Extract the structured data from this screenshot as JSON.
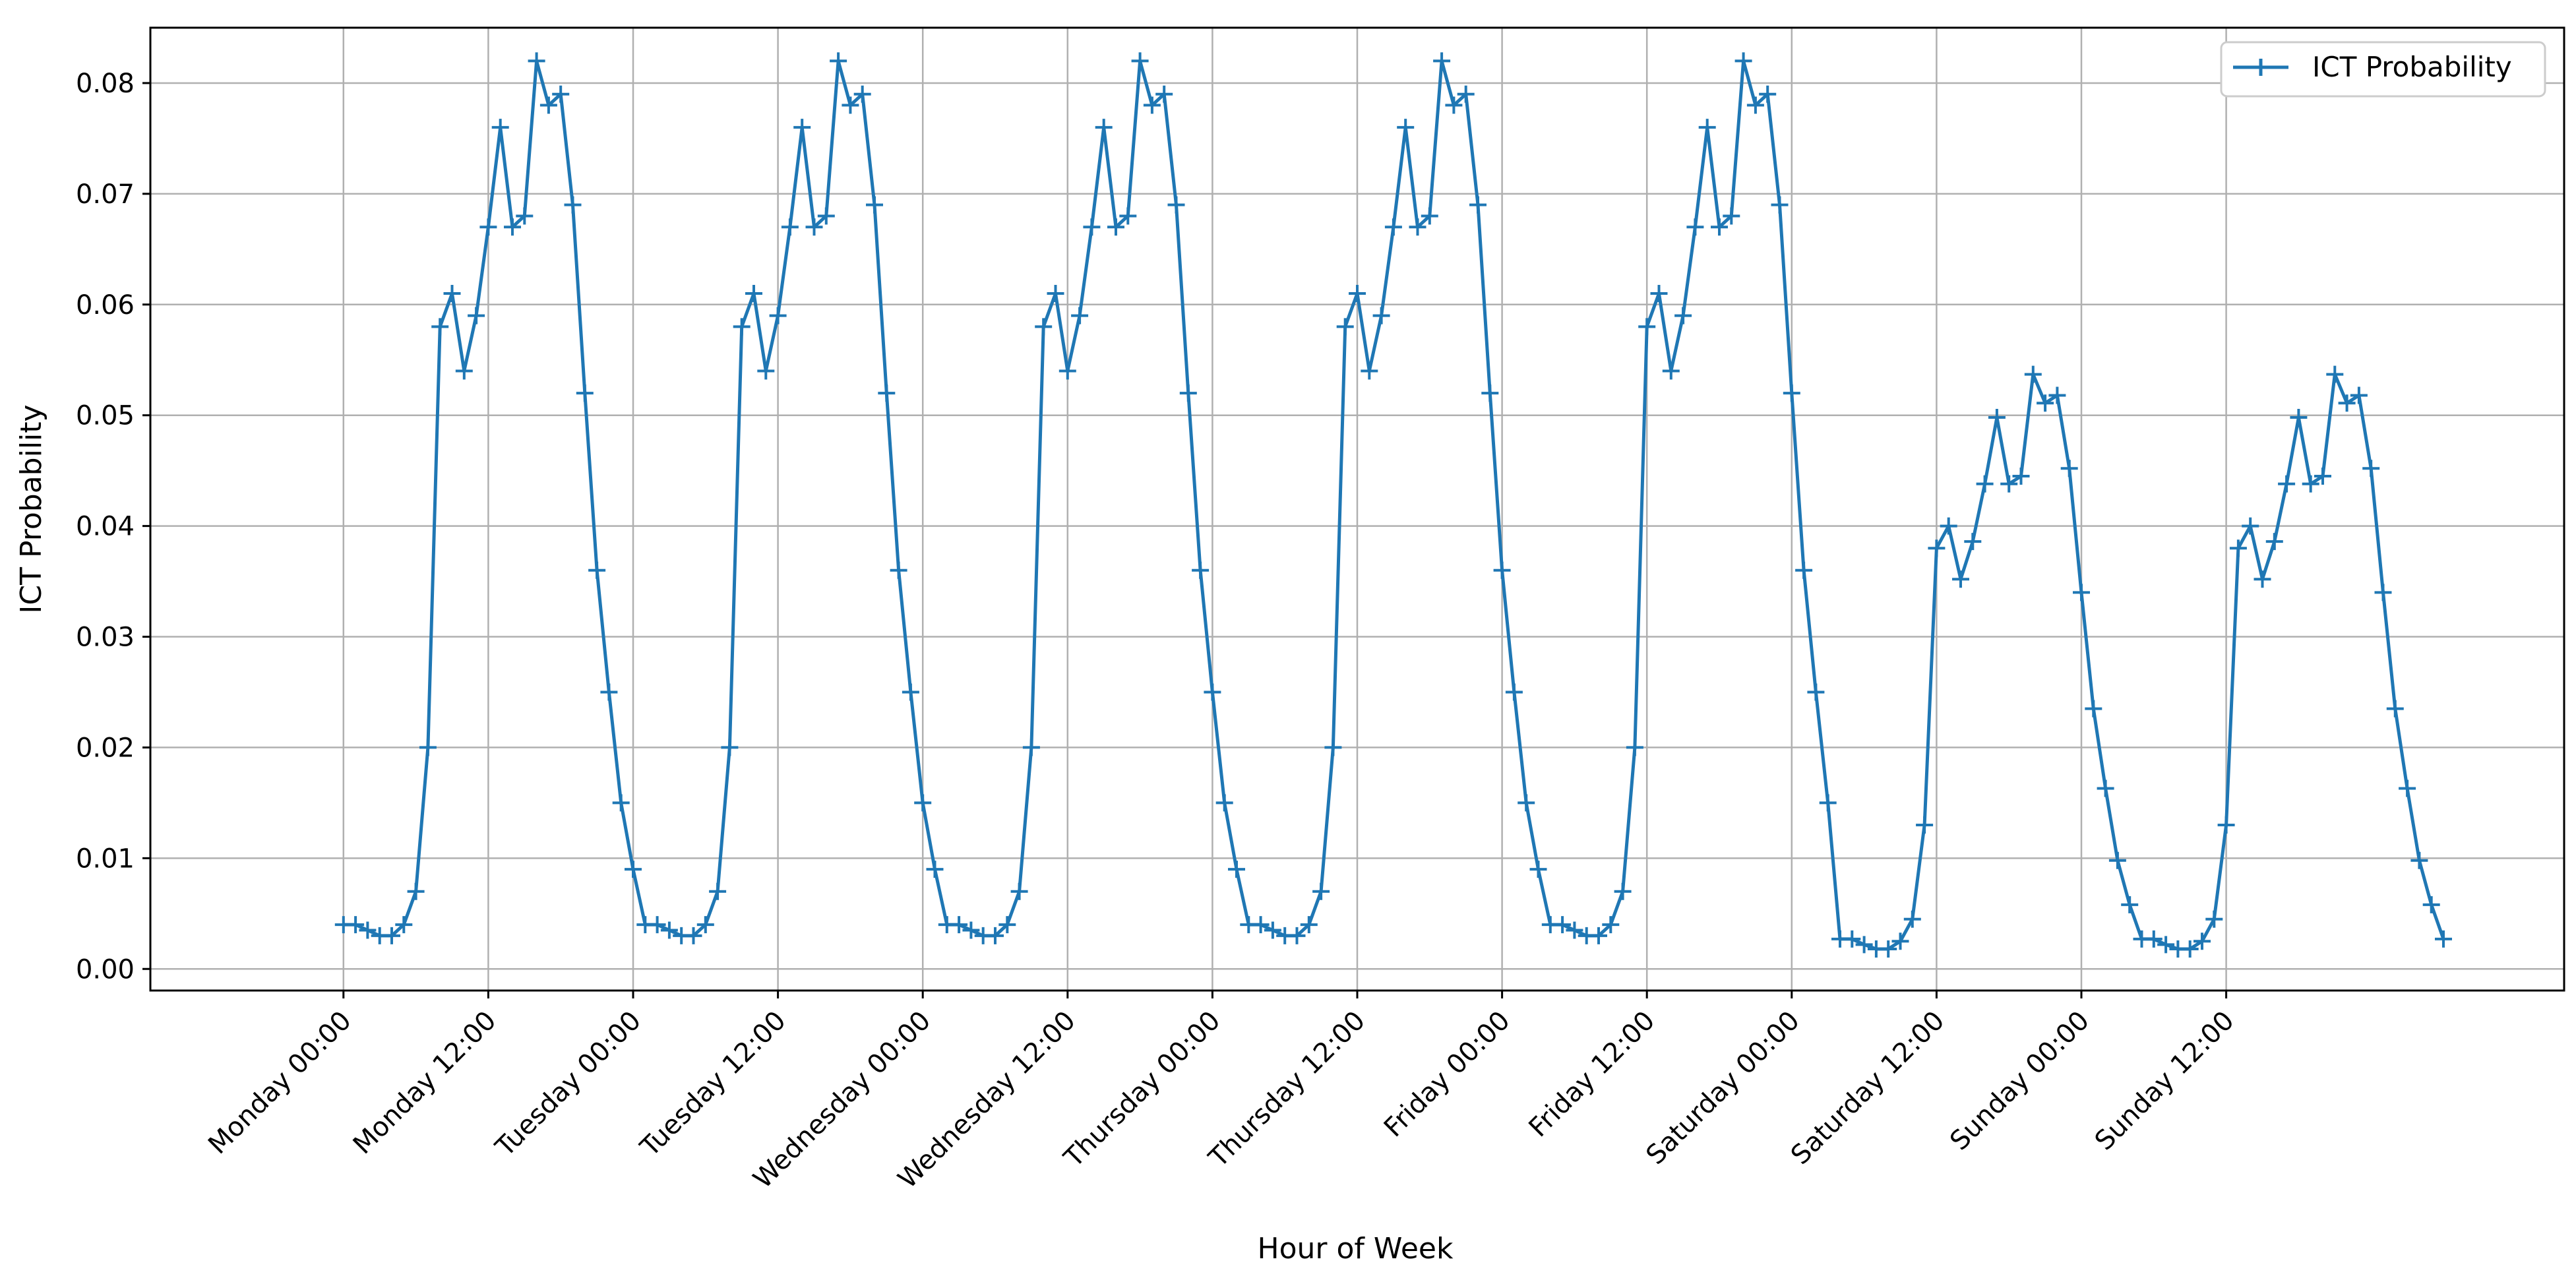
{
  "chart_data": {
    "type": "line",
    "xlabel": "Hour of Week",
    "ylabel": "ICT Probability",
    "xlim": [
      -16,
      184
    ],
    "ylim": [
      -0.00195,
      0.085
    ],
    "grid": true,
    "legend_placement": "top-right",
    "x_ticks": [
      {
        "value": 0,
        "label": "Monday 00:00"
      },
      {
        "value": 12,
        "label": "Monday 12:00"
      },
      {
        "value": 24,
        "label": "Tuesday 00:00"
      },
      {
        "value": 36,
        "label": "Tuesday 12:00"
      },
      {
        "value": 48,
        "label": "Wednesday 00:00"
      },
      {
        "value": 60,
        "label": "Wednesday 12:00"
      },
      {
        "value": 72,
        "label": "Thursday 00:00"
      },
      {
        "value": 84,
        "label": "Thursday 12:00"
      },
      {
        "value": 96,
        "label": "Friday 00:00"
      },
      {
        "value": 108,
        "label": "Friday 12:00"
      },
      {
        "value": 120,
        "label": "Saturday 00:00"
      },
      {
        "value": 132,
        "label": "Saturday 12:00"
      },
      {
        "value": 144,
        "label": "Sunday 00:00"
      },
      {
        "value": 156,
        "label": "Sunday 12:00"
      }
    ],
    "y_ticks": [
      {
        "value": 0.0,
        "label": "0.00"
      },
      {
        "value": 0.01,
        "label": "0.01"
      },
      {
        "value": 0.02,
        "label": "0.02"
      },
      {
        "value": 0.03,
        "label": "0.03"
      },
      {
        "value": 0.04,
        "label": "0.04"
      },
      {
        "value": 0.05,
        "label": "0.05"
      },
      {
        "value": 0.06,
        "label": "0.06"
      },
      {
        "value": 0.07,
        "label": "0.07"
      },
      {
        "value": 0.08,
        "label": "0.08"
      }
    ],
    "series": [
      {
        "name": "ICT Probability",
        "color": "#1f77b4",
        "marker": "plus",
        "y": [
          0.004,
          0.004,
          0.0035,
          0.003,
          0.003,
          0.004,
          0.007,
          0.02,
          0.058,
          0.061,
          0.054,
          0.059,
          0.067,
          0.076,
          0.067,
          0.068,
          0.082,
          0.078,
          0.079,
          0.069,
          0.052,
          0.036,
          0.025,
          0.015,
          0.009,
          0.004,
          0.004,
          0.0035,
          0.003,
          0.003,
          0.004,
          0.007,
          0.02,
          0.058,
          0.061,
          0.054,
          0.059,
          0.067,
          0.076,
          0.067,
          0.068,
          0.082,
          0.078,
          0.079,
          0.069,
          0.052,
          0.036,
          0.025,
          0.015,
          0.009,
          0.004,
          0.004,
          0.0035,
          0.003,
          0.003,
          0.004,
          0.007,
          0.02,
          0.058,
          0.061,
          0.054,
          0.059,
          0.067,
          0.076,
          0.067,
          0.068,
          0.082,
          0.078,
          0.079,
          0.069,
          0.052,
          0.036,
          0.025,
          0.015,
          0.009,
          0.004,
          0.004,
          0.0035,
          0.003,
          0.003,
          0.004,
          0.007,
          0.02,
          0.058,
          0.061,
          0.054,
          0.059,
          0.067,
          0.076,
          0.067,
          0.068,
          0.082,
          0.078,
          0.079,
          0.069,
          0.052,
          0.036,
          0.025,
          0.015,
          0.009,
          0.004,
          0.004,
          0.0035,
          0.003,
          0.003,
          0.004,
          0.007,
          0.02,
          0.058,
          0.061,
          0.054,
          0.059,
          0.067,
          0.076,
          0.067,
          0.068,
          0.082,
          0.078,
          0.079,
          0.069,
          0.052,
          0.036,
          0.025,
          0.015,
          0.0027,
          0.0027,
          0.0022,
          0.0018,
          0.0018,
          0.0025,
          0.0045,
          0.013,
          0.038,
          0.04,
          0.0352,
          0.0386,
          0.0438,
          0.0498,
          0.0438,
          0.0445,
          0.0537,
          0.0511,
          0.0518,
          0.0452,
          0.034,
          0.0235,
          0.0163,
          0.0098,
          0.0058,
          0.0027,
          0.0027,
          0.0022,
          0.0018,
          0.0018,
          0.0025,
          0.0045,
          0.013,
          0.038,
          0.04,
          0.0352,
          0.0386,
          0.0438,
          0.0498,
          0.0438,
          0.0445,
          0.0537,
          0.0511,
          0.0518,
          0.0452,
          0.034,
          0.0235,
          0.0163,
          0.0098,
          0.0058,
          0.0027
        ]
      }
    ]
  }
}
